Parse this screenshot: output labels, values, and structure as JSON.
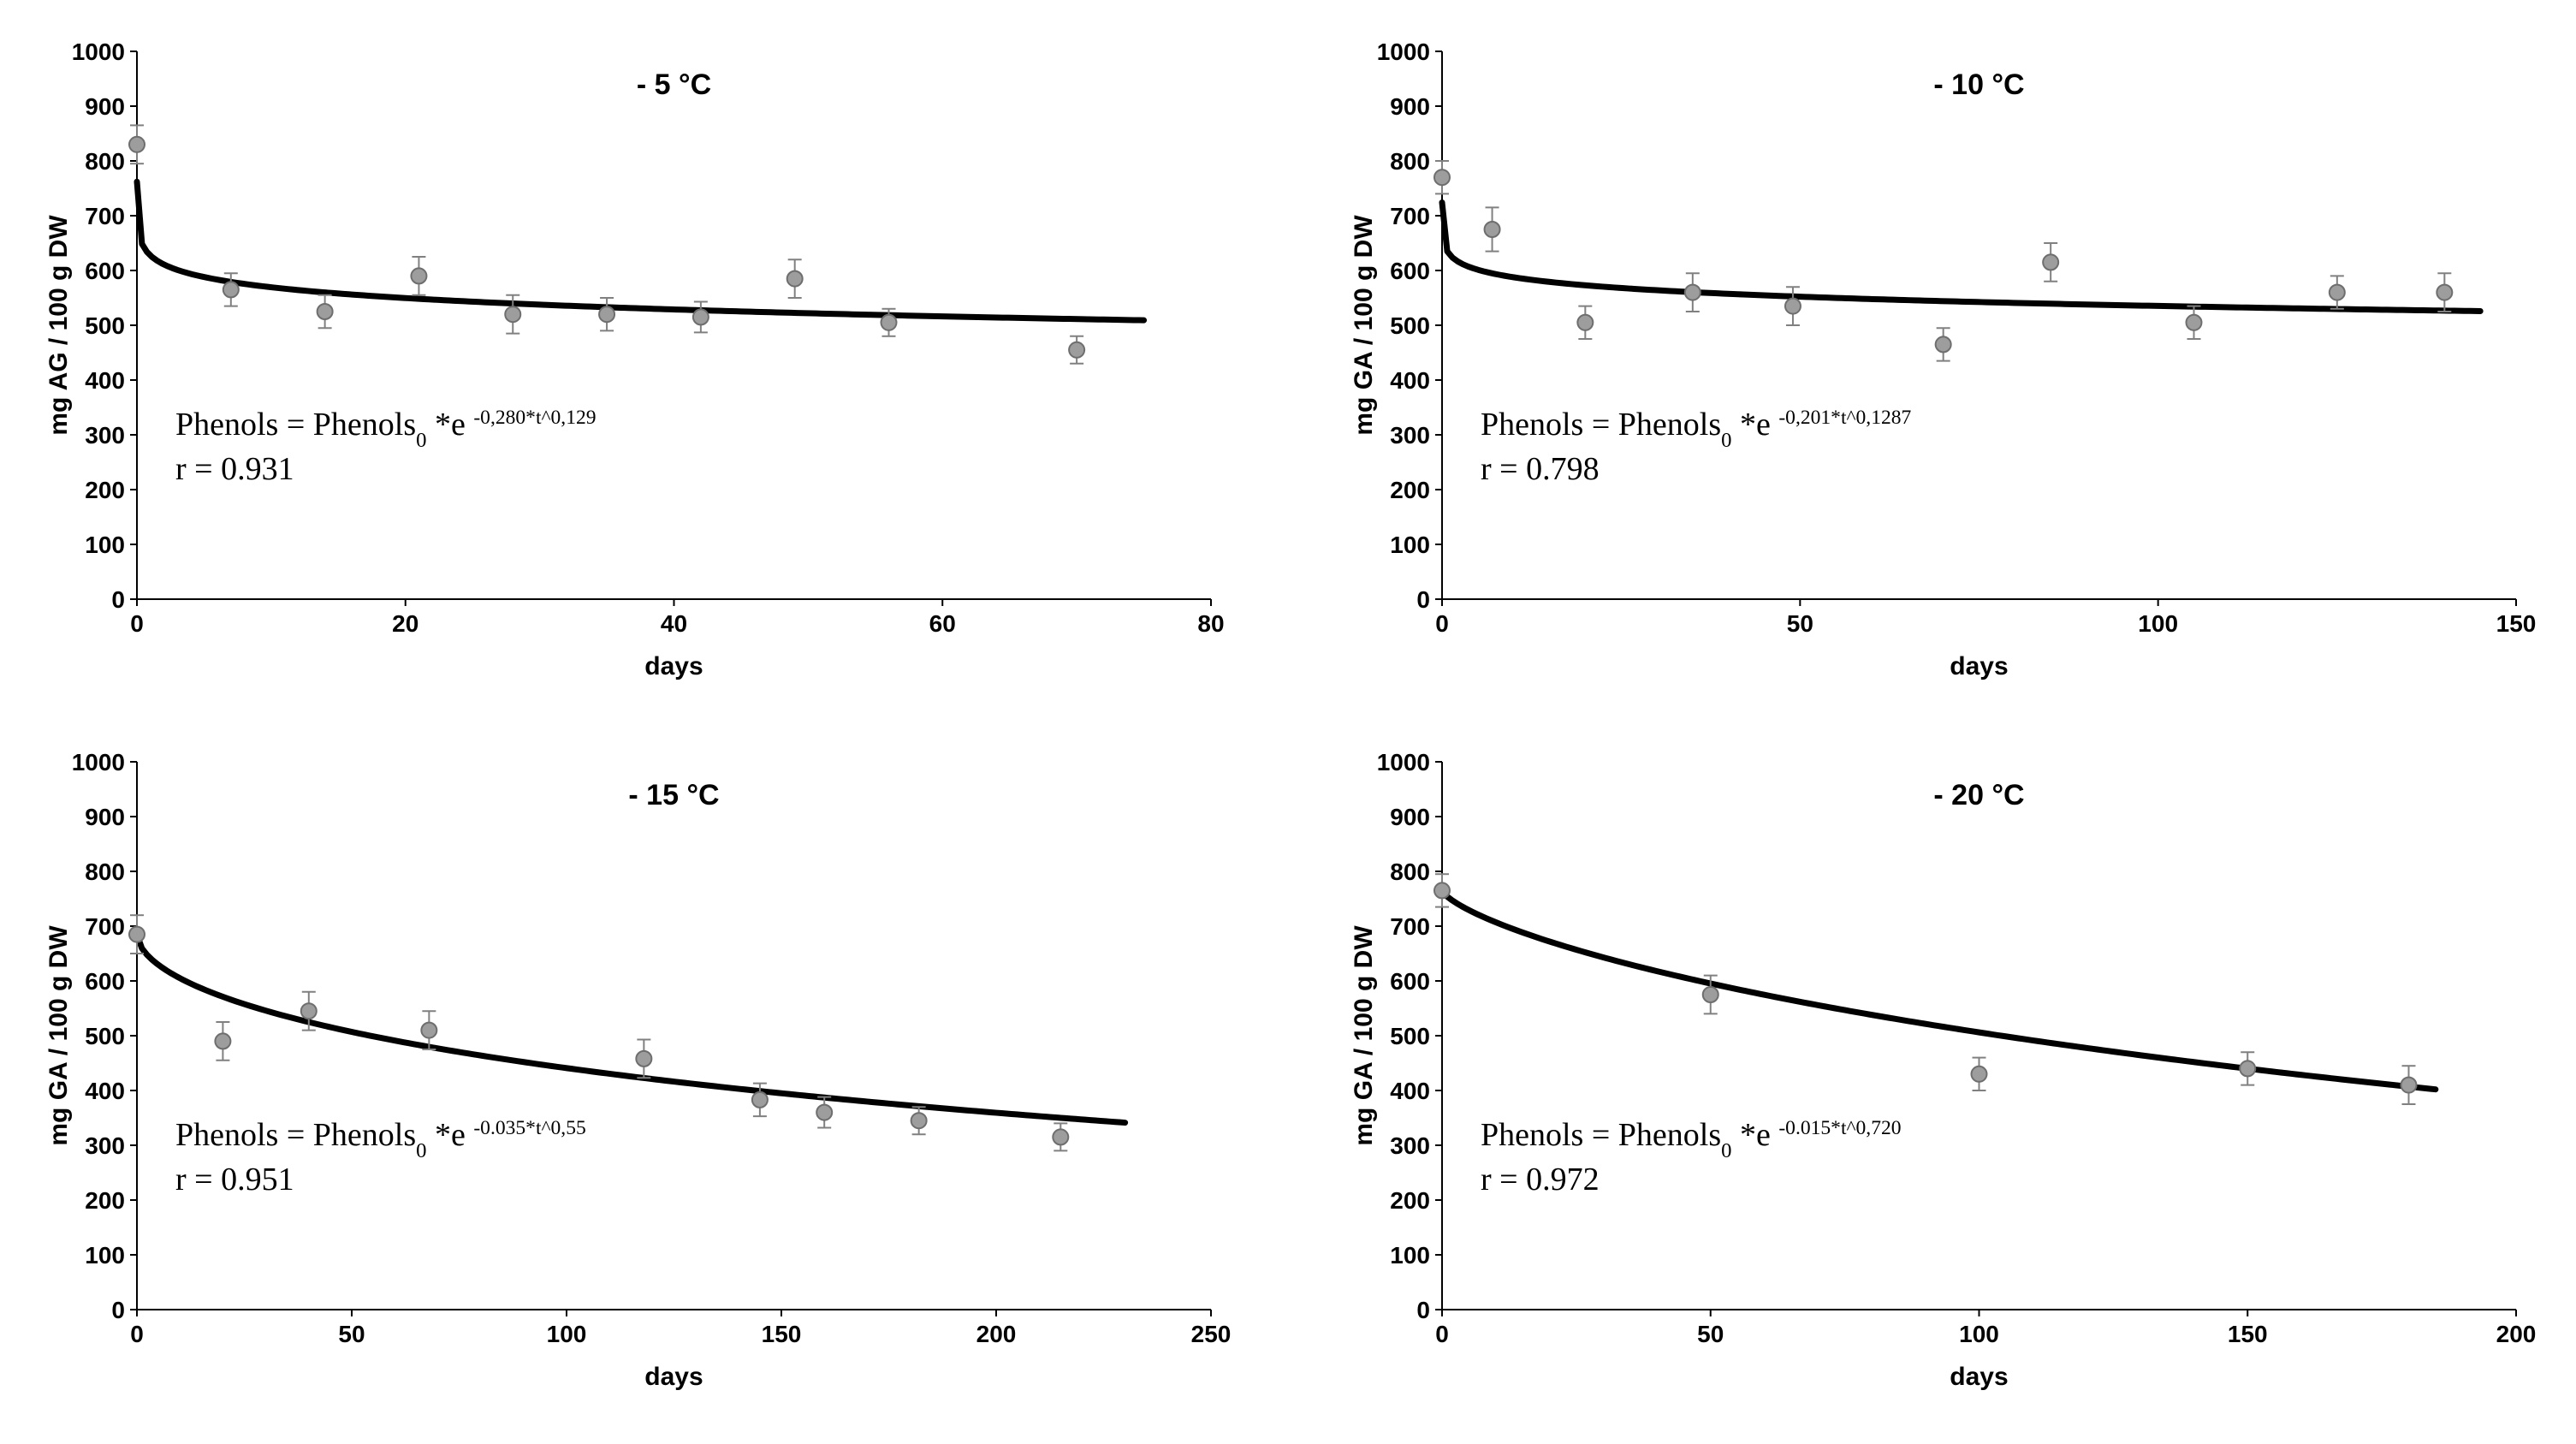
{
  "global": {
    "font_family": "Arial, Helvetica, sans-serif",
    "equation_font": "Georgia, Times New Roman, serif",
    "background_color": "#ffffff",
    "axis_color": "#000000",
    "axis_width": 2,
    "fit_line_color": "#000000",
    "fit_line_width": 7,
    "marker_fill": "#9d9d9d",
    "marker_stroke": "#6e6e6e",
    "marker_radius": 9,
    "errorbar_color": "#808080",
    "errorbar_width": 2,
    "tick_label_fontsize": 28,
    "axis_label_fontsize": 30,
    "title_fontsize": 34,
    "equation_fontsize": 38,
    "title_weight": "bold"
  },
  "panels": [
    {
      "key": "p5",
      "title": "- 5 °C",
      "ylabel": "mg AG / 100 g DW",
      "xlabel": "days",
      "xlim": [
        0,
        80
      ],
      "xtick_step": 20,
      "ylim": [
        0,
        1000
      ],
      "ytick_step": 100,
      "equation_main": "Phenols = Phenols",
      "equation_sub": "0",
      "equation_tail": " *e ",
      "equation_exp": "-0,280*t^0,129",
      "r_text": "r = 0.931",
      "fit_initial": 830,
      "fit_k": 0.28,
      "fit_p": 0.129,
      "fit_tmax": 75,
      "points": [
        {
          "x": 0,
          "y": 830,
          "err": 35
        },
        {
          "x": 7,
          "y": 565,
          "err": 30
        },
        {
          "x": 14,
          "y": 525,
          "err": 30
        },
        {
          "x": 21,
          "y": 590,
          "err": 35
        },
        {
          "x": 28,
          "y": 520,
          "err": 35
        },
        {
          "x": 35,
          "y": 520,
          "err": 30
        },
        {
          "x": 42,
          "y": 515,
          "err": 28
        },
        {
          "x": 49,
          "y": 585,
          "err": 35
        },
        {
          "x": 56,
          "y": 505,
          "err": 25
        },
        {
          "x": 70,
          "y": 455,
          "err": 25
        }
      ]
    },
    {
      "key": "p10",
      "title": "- 10 °C",
      "ylabel": "mg GA / 100 g DW",
      "xlabel": "days",
      "xlim": [
        0,
        150
      ],
      "xtick_step": 50,
      "ylim": [
        0,
        1000
      ],
      "ytick_step": 100,
      "equation_main": "Phenols = Phenols",
      "equation_sub": "0",
      "equation_tail": " *e ",
      "equation_exp": "-0,201*t^0,1287",
      "r_text": "r = 0.798",
      "fit_initial": 770,
      "fit_k": 0.201,
      "fit_p": 0.1287,
      "fit_tmax": 145,
      "points": [
        {
          "x": 0,
          "y": 770,
          "err": 30
        },
        {
          "x": 7,
          "y": 675,
          "err": 40
        },
        {
          "x": 20,
          "y": 505,
          "err": 30
        },
        {
          "x": 35,
          "y": 560,
          "err": 35
        },
        {
          "x": 49,
          "y": 535,
          "err": 35
        },
        {
          "x": 70,
          "y": 465,
          "err": 30
        },
        {
          "x": 85,
          "y": 615,
          "err": 35
        },
        {
          "x": 105,
          "y": 505,
          "err": 30
        },
        {
          "x": 125,
          "y": 560,
          "err": 30
        },
        {
          "x": 140,
          "y": 560,
          "err": 35
        }
      ]
    },
    {
      "key": "p15",
      "title": "- 15 °C",
      "ylabel": "mg GA / 100 g DW",
      "xlabel": "days",
      "xlim": [
        0,
        250
      ],
      "xtick_step": 50,
      "ylim": [
        0,
        1000
      ],
      "ytick_step": 100,
      "equation_main": "Phenols = Phenols",
      "equation_sub": "0",
      "equation_tail": " *e ",
      "equation_exp": "-0.035*t^0,55",
      "r_text": "r = 0.951",
      "fit_initial": 685,
      "fit_k": 0.035,
      "fit_p": 0.55,
      "fit_tmax": 230,
      "points": [
        {
          "x": 0,
          "y": 685,
          "err": 35
        },
        {
          "x": 20,
          "y": 490,
          "err": 35
        },
        {
          "x": 40,
          "y": 545,
          "err": 35
        },
        {
          "x": 68,
          "y": 510,
          "err": 35
        },
        {
          "x": 118,
          "y": 458,
          "err": 35
        },
        {
          "x": 145,
          "y": 383,
          "err": 30
        },
        {
          "x": 160,
          "y": 360,
          "err": 28
        },
        {
          "x": 182,
          "y": 345,
          "err": 25
        },
        {
          "x": 215,
          "y": 315,
          "err": 25
        }
      ]
    },
    {
      "key": "p20",
      "title": "- 20 °C",
      "ylabel": "mg GA / 100 g DW",
      "xlabel": "days",
      "xlim": [
        0,
        200
      ],
      "xtick_step": 50,
      "ylim": [
        0,
        1000
      ],
      "ytick_step": 100,
      "equation_main": "Phenols = Phenols",
      "equation_sub": "0",
      "equation_tail": " *e ",
      "equation_exp": "-0.015*t^0,720",
      "r_text": "r = 0.972",
      "fit_initial": 765,
      "fit_k": 0.015,
      "fit_p": 0.72,
      "fit_tmax": 185,
      "points": [
        {
          "x": 0,
          "y": 765,
          "err": 30
        },
        {
          "x": 50,
          "y": 575,
          "err": 35
        },
        {
          "x": 100,
          "y": 430,
          "err": 30
        },
        {
          "x": 150,
          "y": 440,
          "err": 30
        },
        {
          "x": 180,
          "y": 410,
          "err": 35
        }
      ]
    }
  ]
}
